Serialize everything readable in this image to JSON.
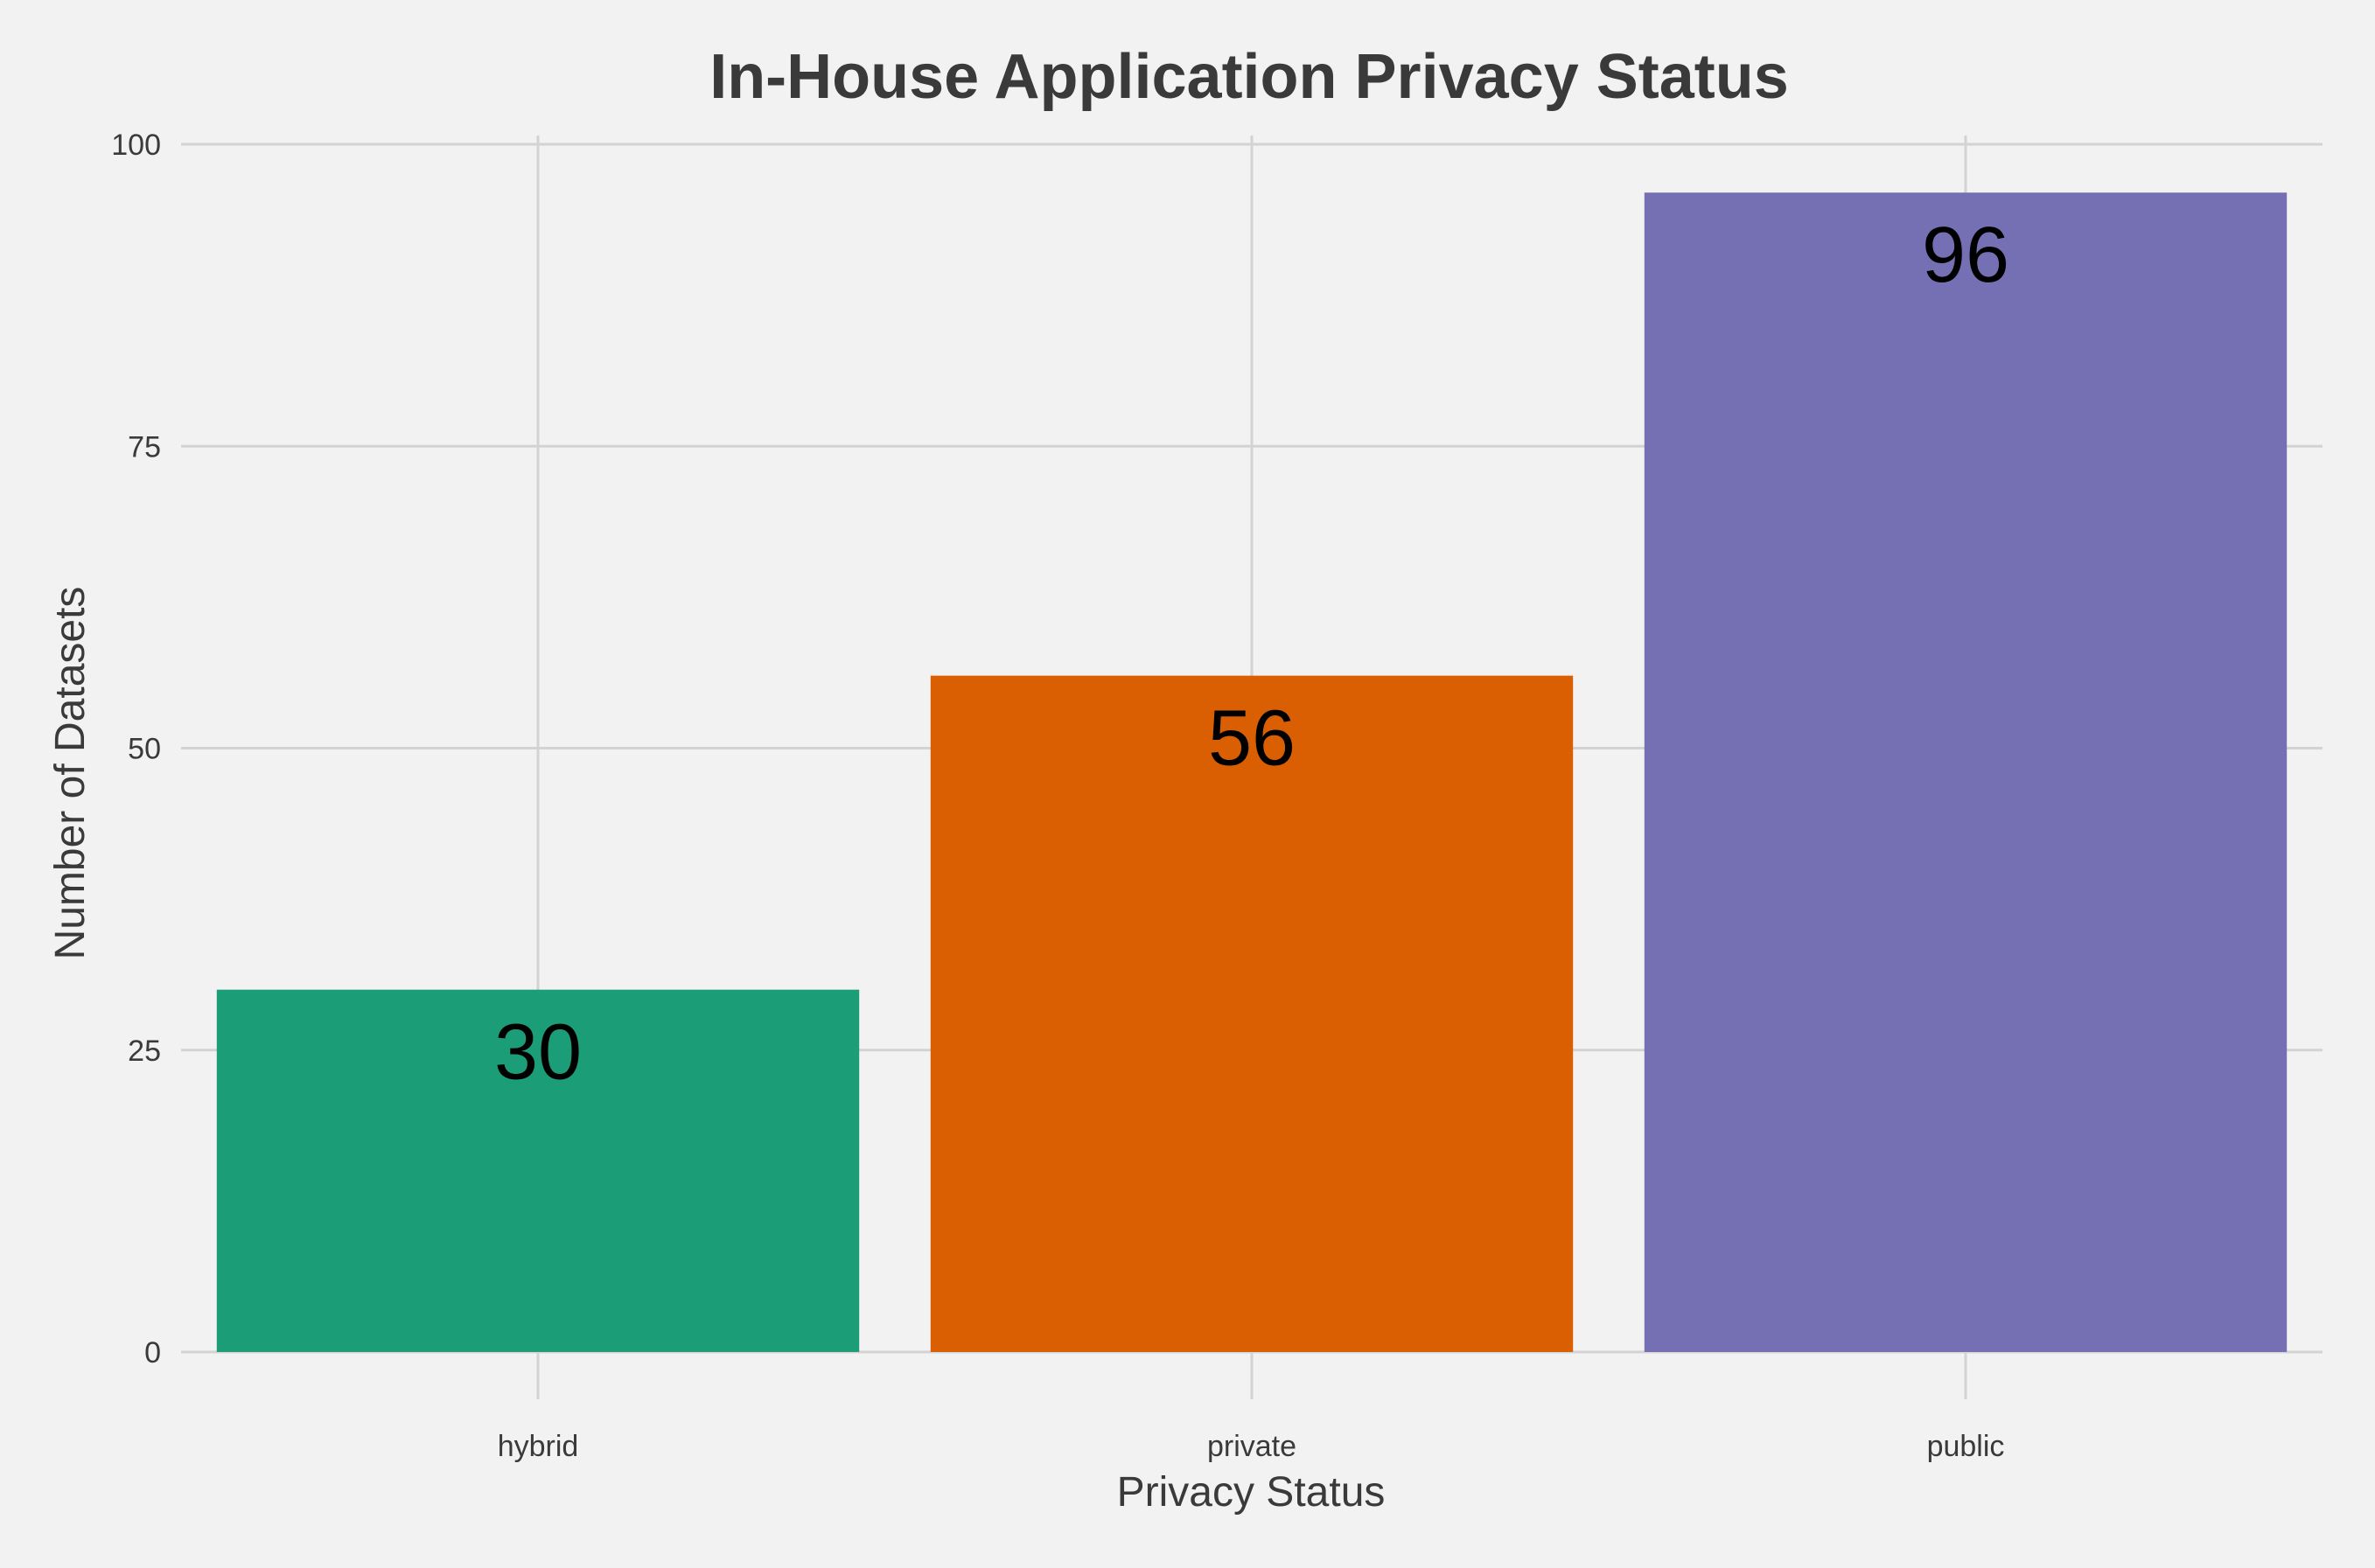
{
  "chart_data": {
    "type": "bar",
    "title": "In-House Application Privacy Status",
    "xlabel": "Privacy Status",
    "ylabel": "Number of Datasets",
    "categories": [
      "hybrid",
      "private",
      "public"
    ],
    "values": [
      30,
      56,
      96
    ],
    "data_labels": [
      "30",
      "56",
      "96"
    ],
    "colors": [
      "#1b9e77",
      "#d95f02",
      "#7570b3"
    ],
    "ylim": [
      0,
      100
    ],
    "yticks": [
      0,
      25,
      50,
      75,
      100
    ],
    "ytick_labels": [
      "0",
      "25",
      "50",
      "75",
      "100"
    ],
    "grid": true,
    "legend": "none",
    "background": "#f2f2f2",
    "grid_color": "#d3d3d3"
  }
}
